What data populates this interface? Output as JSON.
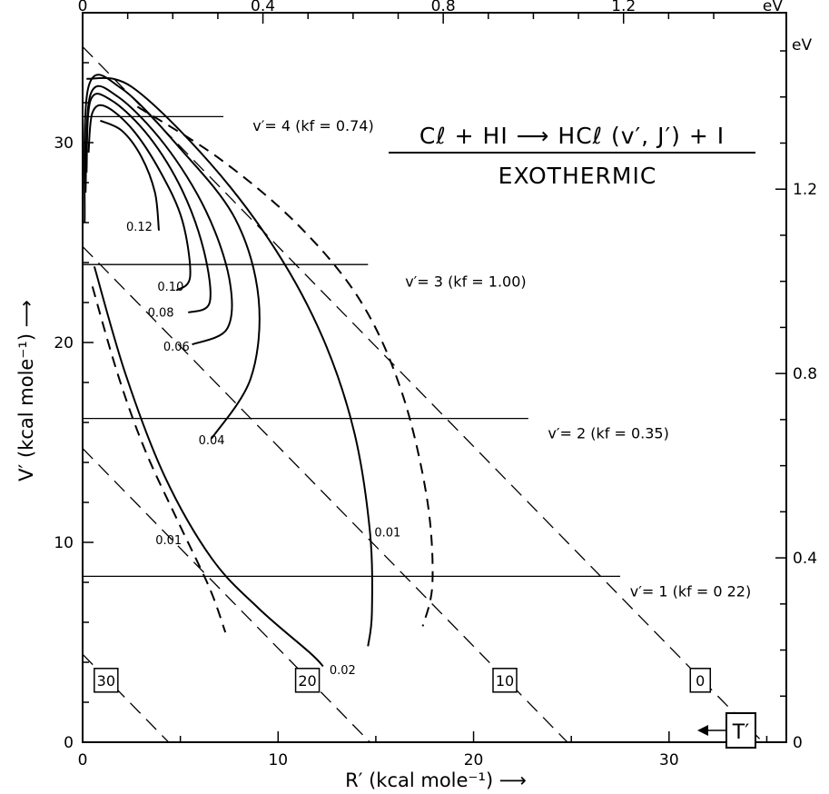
{
  "chart_data": {
    "type": "contour",
    "title": {
      "line1": "Cℓ + HI ⟶ HCℓ (v′, J′) + I",
      "line2": "EXOTHERMIC"
    },
    "xlabel": "R′ (kcal mole⁻¹) ⟶",
    "ylabel": "V′ (kcal mole⁻¹) ⟶",
    "xlim": [
      0,
      36
    ],
    "ylim": [
      0,
      36.5
    ],
    "x_ticks": [
      0,
      10,
      20,
      30
    ],
    "y_ticks": [
      0,
      10,
      20,
      30
    ],
    "top_axis": {
      "unit": "eV",
      "ticks": [
        "0",
        "0.4",
        "0.8",
        "1.2"
      ],
      "values": [
        0,
        0.4,
        0.8,
        1.2
      ],
      "kcal_per_unit": 23.06
    },
    "right_axis": {
      "unit": "eV",
      "ticks": [
        "0",
        "0.4",
        "0.8",
        "1.2"
      ],
      "values": [
        0,
        0.4,
        0.8,
        1.2
      ],
      "kcal_per_unit": 23.06
    },
    "vibrational_levels": [
      {
        "label": "v′= 4 (kf = 0.74)",
        "v": 31.3,
        "x_end": 7.2
      },
      {
        "label": "v′= 3 (kf = 1.00)",
        "v": 23.9,
        "x_end": 14.6
      },
      {
        "label": "v′= 2 (kf = 0.35)",
        "v": 16.2,
        "x_end": 22.8
      },
      {
        "label": "v′= 1 (kf = 0 22)",
        "v": 8.3,
        "x_end": 27.5
      }
    ],
    "translational_lines": [
      {
        "label": "30",
        "T": 30,
        "v_intercept": 4.4
      },
      {
        "label": "20",
        "T": 20,
        "v_intercept": 14.7
      },
      {
        "label": "10",
        "T": 10,
        "v_intercept": 24.8
      },
      {
        "label": "0",
        "T": 0,
        "v_intercept": 34.8
      }
    ],
    "contour_labels": [
      "0.12",
      "0.10",
      "0.08",
      "0.06",
      "0.04",
      "0.02",
      "0.01",
      "0.01"
    ],
    "contours": [
      {
        "label": "0.12",
        "style": "solid",
        "points": [
          [
            0.9,
            31.1
          ],
          [
            2.0,
            30.6
          ],
          [
            3.0,
            29.3
          ],
          [
            3.7,
            27.5
          ],
          [
            3.9,
            25.6
          ]
        ]
      },
      {
        "label": "0.10",
        "style": "solid",
        "points": [
          [
            0.3,
            29.5
          ],
          [
            0.5,
            31.5
          ],
          [
            1.2,
            31.8
          ],
          [
            2.6,
            30.6
          ],
          [
            4.0,
            28.5
          ],
          [
            5.1,
            26.1
          ],
          [
            5.5,
            23.3
          ],
          [
            4.8,
            22.6
          ]
        ]
      },
      {
        "label": "0.08",
        "style": "solid",
        "points": [
          [
            0.2,
            28.5
          ],
          [
            0.4,
            32.1
          ],
          [
            1.5,
            32.1
          ],
          [
            3.4,
            30.3
          ],
          [
            5.1,
            27.6
          ],
          [
            6.2,
            24.6
          ],
          [
            6.5,
            22.0
          ],
          [
            5.4,
            21.5
          ]
        ]
      },
      {
        "label": "0.06",
        "style": "solid",
        "points": [
          [
            0.15,
            27.5
          ],
          [
            0.4,
            32.4
          ],
          [
            1.8,
            32.3
          ],
          [
            4.2,
            29.9
          ],
          [
            6.3,
            26.6
          ],
          [
            7.5,
            23.2
          ],
          [
            7.4,
            20.7
          ],
          [
            5.6,
            19.9
          ]
        ]
      },
      {
        "label": "0.04",
        "style": "solid",
        "points": [
          [
            0.1,
            26.0
          ],
          [
            0.3,
            32.8
          ],
          [
            2.0,
            32.7
          ],
          [
            5.0,
            29.7
          ],
          [
            7.8,
            26.2
          ],
          [
            9.0,
            22.2
          ],
          [
            8.6,
            18.2
          ],
          [
            6.6,
            15.2
          ]
        ]
      },
      {
        "label": "0.02",
        "style": "solid",
        "points": [
          [
            0.6,
            23.8
          ],
          [
            2.2,
            18.4
          ],
          [
            4.2,
            13.3
          ],
          [
            6.6,
            9.2
          ],
          [
            9.0,
            6.7
          ],
          [
            11.6,
            4.5
          ],
          [
            12.3,
            3.8
          ]
        ]
      },
      {
        "label": "0.02",
        "style": "solid",
        "points": [
          [
            0.2,
            33.2
          ],
          [
            2.5,
            32.8
          ],
          [
            6.5,
            29.0
          ],
          [
            9.9,
            24.6
          ],
          [
            12.3,
            20.2
          ],
          [
            13.9,
            15.5
          ],
          [
            14.7,
            10.5
          ],
          [
            14.8,
            6.5
          ],
          [
            14.6,
            4.8
          ]
        ]
      },
      {
        "label": "0.01",
        "style": "dashed",
        "points": [
          [
            0.5,
            22.8
          ],
          [
            1.8,
            18.4
          ],
          [
            3.2,
            14.6
          ],
          [
            5.0,
            10.8
          ],
          [
            6.5,
            7.7
          ],
          [
            7.3,
            5.5
          ]
        ]
      },
      {
        "label": "0.01",
        "style": "dashed",
        "points": [
          [
            2.8,
            31.8
          ],
          [
            7.0,
            29.2
          ],
          [
            11.0,
            25.9
          ],
          [
            14.2,
            22.1
          ],
          [
            16.3,
            17.6
          ],
          [
            17.6,
            12.3
          ],
          [
            17.9,
            8.0
          ],
          [
            17.4,
            5.8
          ]
        ]
      }
    ],
    "legend": "T′"
  }
}
